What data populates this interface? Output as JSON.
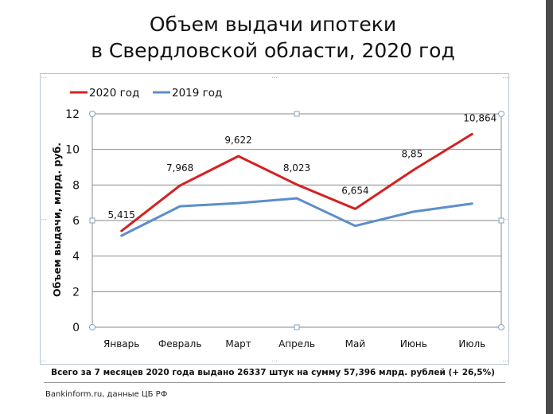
{
  "title_line1": "Объем выдачи ипотеки",
  "title_line2": "в Свердловской области, 2020 год",
  "footnote": "Всего за 7 месяцев 2020 года  выдано 26337 штук на сумму 57,396 млрд.  рублей  (+ 26,5%)",
  "source": "Bankinform.ru,  данные ЦБ РФ",
  "chart_data": {
    "type": "line",
    "categories": [
      "Январь",
      "Февраль",
      "Март",
      "Апрель",
      "Май",
      "Июнь",
      "Июль"
    ],
    "ylabel": "Объем выдачи,  млрд. руб.",
    "ylim": [
      0,
      12
    ],
    "yticks": [
      0,
      2,
      4,
      6,
      8,
      10,
      12
    ],
    "grid": true,
    "legend_position": "top-left",
    "series": [
      {
        "name": "2020 год",
        "color": "#d42121",
        "values": [
          5.415,
          7.968,
          9.622,
          8.023,
          6.654,
          8.85,
          10.864
        ],
        "labels": [
          "5,415",
          "7,968",
          "9,622",
          "8,023",
          "6,654",
          "8,85",
          "10,864"
        ]
      },
      {
        "name": "2019 год",
        "color": "#5b8fc9",
        "values": [
          5.15,
          6.8,
          6.98,
          7.25,
          5.7,
          6.5,
          6.95
        ]
      }
    ]
  }
}
